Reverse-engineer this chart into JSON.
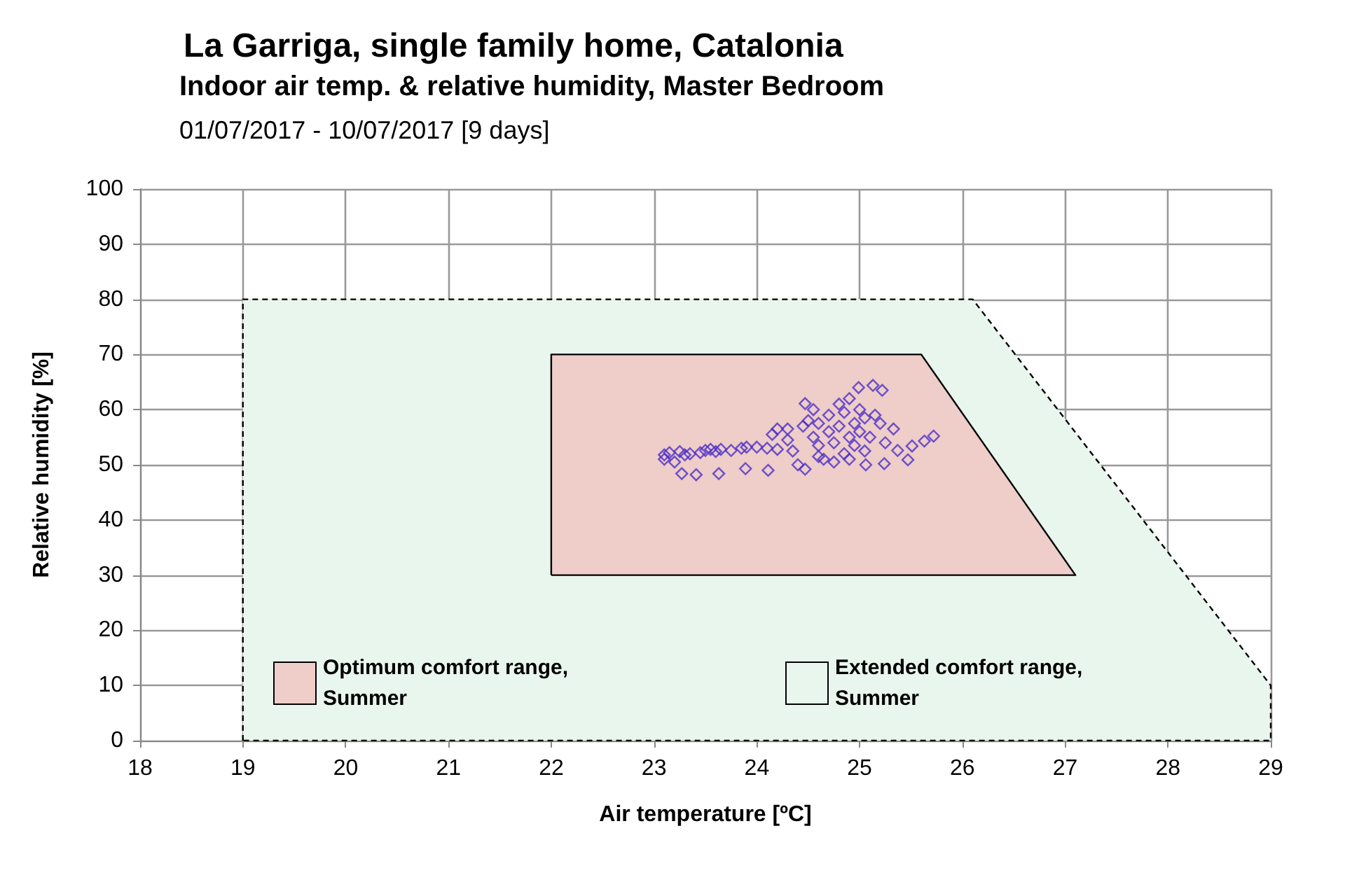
{
  "chart_data": {
    "type": "scatter",
    "title": "La Garriga, single family home, Catalonia",
    "subtitle": "Indoor air temp. & relative humidity, Master Bedroom",
    "annotations": [
      "01/07/2017 - 10/07/2017 [9 days]"
    ],
    "xlabel": "Air temperature [ºC]",
    "ylabel": "Relative humidity [%]",
    "xlim": [
      18,
      29
    ],
    "xticks": [
      18,
      19,
      20,
      21,
      22,
      23,
      24,
      25,
      26,
      27,
      28,
      29
    ],
    "ylim": [
      0,
      100
    ],
    "yticks": [
      0,
      10,
      20,
      30,
      40,
      50,
      60,
      70,
      80,
      90,
      100
    ],
    "grid": true,
    "legend": "bottom",
    "series": [
      {
        "type": "area",
        "name": "Extended comfort range, Summer",
        "color": "#e9f6ee",
        "line_style": "dashed",
        "x": [
          19,
          19,
          26.1,
          29,
          29,
          19
        ],
        "values": [
          0,
          80,
          80,
          10,
          0,
          0
        ]
      },
      {
        "type": "area",
        "name": "Optimum comfort range, Summer",
        "color": "#efcdc8",
        "line_style": "solid",
        "x": [
          22,
          22,
          25.6,
          27.1,
          22
        ],
        "values": [
          30,
          70,
          70,
          30,
          30
        ]
      },
      {
        "marker": "diamond",
        "color": "#4b2fc8",
        "x": [
          23.1,
          23.1,
          23.15,
          23.2,
          23.25,
          23.3,
          23.35,
          23.45,
          23.5,
          23.55,
          23.6,
          23.65,
          23.75,
          23.85,
          23.9,
          24,
          24.1,
          24.2,
          23.27,
          23.41,
          23.63,
          23.89,
          24.11,
          24.15,
          24.2,
          24.3,
          24.3,
          24.35,
          24.47,
          24.4,
          24.47,
          24.45,
          24.5,
          24.55,
          24.6,
          24.6,
          24.65,
          24.7,
          24.7,
          24.75,
          24.8,
          24.8,
          24.85,
          24.85,
          24.9,
          24.9,
          24.95,
          24.95,
          25,
          24.99,
          25,
          25.05,
          25.05,
          25.1,
          25.13,
          25.22,
          25.15,
          25.33,
          25.06,
          25.24,
          25.37,
          25.47,
          25.51,
          25.63,
          25.72,
          24.55,
          24.6,
          24.75,
          24.9,
          25.2,
          25.25
        ],
        "values": [
          51.8,
          51,
          52.2,
          50.5,
          52.4,
          51.8,
          52,
          52.2,
          52.6,
          52.8,
          52.4,
          52.8,
          52.6,
          53,
          53.2,
          53.2,
          53,
          52.8,
          48.4,
          48.2,
          48.4,
          49.3,
          49,
          55.5,
          56.5,
          56.5,
          54.5,
          52.5,
          61.1,
          50,
          49.2,
          57,
          58,
          55,
          53.5,
          57.5,
          51,
          56,
          59,
          54,
          61,
          57,
          52,
          59.5,
          55,
          62,
          57.5,
          53.5,
          60,
          64,
          56,
          58.5,
          52.5,
          55,
          64.4,
          63.5,
          59,
          56.5,
          50,
          50.2,
          52.6,
          50.9,
          53.4,
          54.3,
          55.2,
          60,
          51.5,
          50.5,
          51,
          57.5,
          54
        ]
      }
    ]
  }
}
